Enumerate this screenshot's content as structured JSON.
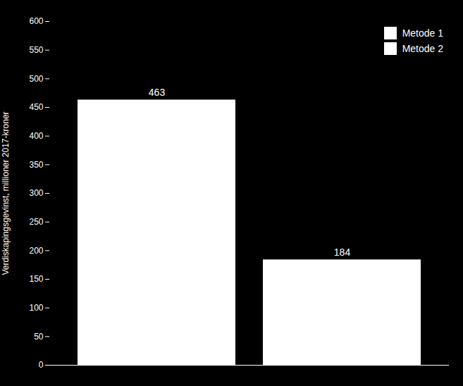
{
  "chart_data": {
    "type": "bar",
    "ylabel": "Verdiskapingsgevinst, millioner 2017-kroner",
    "categories": [
      "Metode 1",
      "Metode 2"
    ],
    "values": [
      463,
      184
    ],
    "colors": [
      "#ffffff",
      "#ffffff"
    ],
    "ylim": [
      0,
      600
    ],
    "yticks": [
      0,
      50,
      100,
      150,
      200,
      250,
      300,
      350,
      400,
      450,
      500,
      550,
      600
    ],
    "data_labels": true,
    "legend": "upper right",
    "tick_labels": "y"
  }
}
